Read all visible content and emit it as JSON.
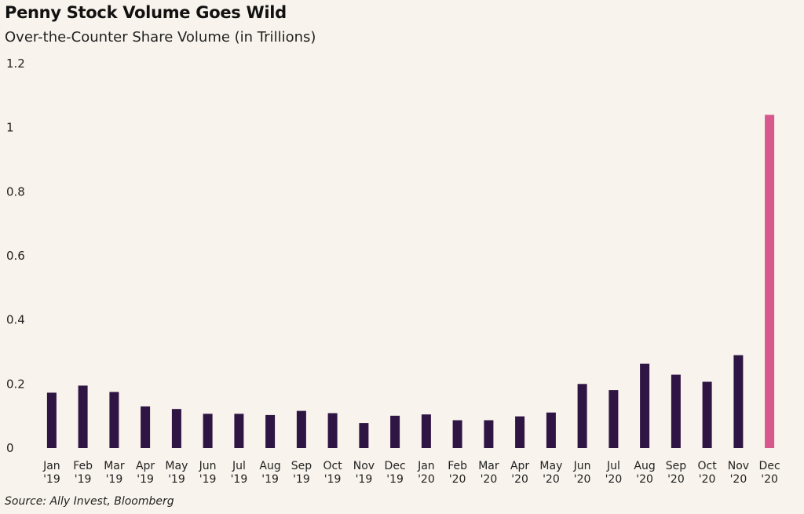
{
  "chart_data": {
    "type": "bar",
    "title": "Penny Stock Volume Goes Wild",
    "subtitle": "Over-the-Counter Share Volume (in Trillions)",
    "source": "Source: Ally Invest, Bloomberg",
    "categories": [
      [
        "Jan",
        "'19"
      ],
      [
        "Feb",
        "'19"
      ],
      [
        "Mar",
        "'19"
      ],
      [
        "Apr",
        "'19"
      ],
      [
        "May",
        "'19"
      ],
      [
        "Jun",
        "'19"
      ],
      [
        "Jul",
        "'19"
      ],
      [
        "Aug",
        "'19"
      ],
      [
        "Sep",
        "'19"
      ],
      [
        "Oct",
        "'19"
      ],
      [
        "Nov",
        "'19"
      ],
      [
        "Dec",
        "'19"
      ],
      [
        "Jan",
        "'20"
      ],
      [
        "Feb",
        "'20"
      ],
      [
        "Mar",
        "'20"
      ],
      [
        "Apr",
        "'20"
      ],
      [
        "May",
        "'20"
      ],
      [
        "Jun",
        "'20"
      ],
      [
        "Jul",
        "'20"
      ],
      [
        "Aug",
        "'20"
      ],
      [
        "Sep",
        "'20"
      ],
      [
        "Oct",
        "'20"
      ],
      [
        "Nov",
        "'20"
      ],
      [
        "Dec",
        "'20"
      ]
    ],
    "values": [
      0.173,
      0.195,
      0.175,
      0.13,
      0.122,
      0.107,
      0.107,
      0.103,
      0.116,
      0.109,
      0.078,
      0.101,
      0.105,
      0.087,
      0.087,
      0.099,
      0.111,
      0.2,
      0.181,
      0.263,
      0.229,
      0.207,
      0.29,
      1.04
    ],
    "yticks": [
      "0",
      "0.2",
      "0.4",
      "0.6",
      "0.8",
      "1",
      "1.2"
    ],
    "ylim": [
      0,
      1.2
    ],
    "grid": false,
    "colors": {
      "default": "#2e1543",
      "highlight": "#d6588c"
    },
    "highlight_index": 23
  }
}
